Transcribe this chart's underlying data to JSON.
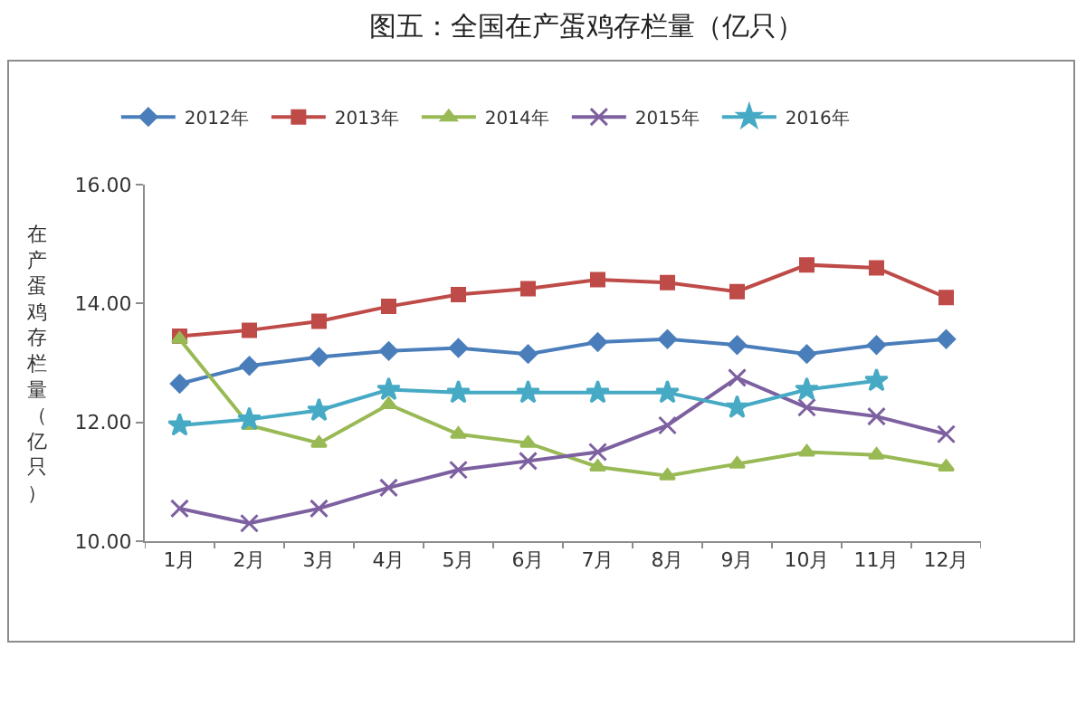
{
  "chart_data": {
    "type": "line",
    "title": "图五：全国在产蛋鸡存栏量（亿只）",
    "ylabel": "在产蛋鸡存栏量（亿只）",
    "categories": [
      "1月",
      "2月",
      "3月",
      "4月",
      "5月",
      "6月",
      "7月",
      "8月",
      "9月",
      "10月",
      "11月",
      "12月"
    ],
    "ylim": [
      10,
      16
    ],
    "yticks": [
      {
        "value": 10,
        "label": "10.00"
      },
      {
        "value": 12,
        "label": "12.00"
      },
      {
        "value": 14,
        "label": "14.00"
      },
      {
        "value": 16,
        "label": "16.00"
      }
    ],
    "grid": false,
    "legend": "top",
    "line_style": "solid",
    "series": [
      {
        "name": "2012年",
        "color": "#4a7ebb",
        "marker": "diamond",
        "values": [
          12.65,
          12.95,
          13.1,
          13.2,
          13.25,
          13.15,
          13.35,
          13.4,
          13.3,
          13.15,
          13.3,
          13.4
        ]
      },
      {
        "name": "2013年",
        "color": "#be4b48",
        "marker": "square",
        "values": [
          13.45,
          13.55,
          13.7,
          13.95,
          14.15,
          14.25,
          14.4,
          14.35,
          14.2,
          14.65,
          14.6,
          14.1
        ]
      },
      {
        "name": "2014年",
        "color": "#98b954",
        "marker": "triangle",
        "values": [
          13.4,
          11.95,
          11.65,
          12.3,
          11.8,
          11.65,
          11.25,
          11.1,
          11.3,
          11.5,
          11.45,
          11.25
        ]
      },
      {
        "name": "2015年",
        "color": "#7d60a0",
        "marker": "cross",
        "values": [
          10.55,
          10.3,
          10.55,
          10.9,
          11.2,
          11.35,
          11.5,
          11.95,
          12.75,
          12.25,
          12.1,
          11.8
        ]
      },
      {
        "name": "2016年",
        "color": "#46aac5",
        "marker": "star",
        "values": [
          11.95,
          12.05,
          12.2,
          12.55,
          12.5,
          12.5,
          12.5,
          12.5,
          12.25,
          12.55,
          12.7,
          null
        ]
      }
    ]
  }
}
